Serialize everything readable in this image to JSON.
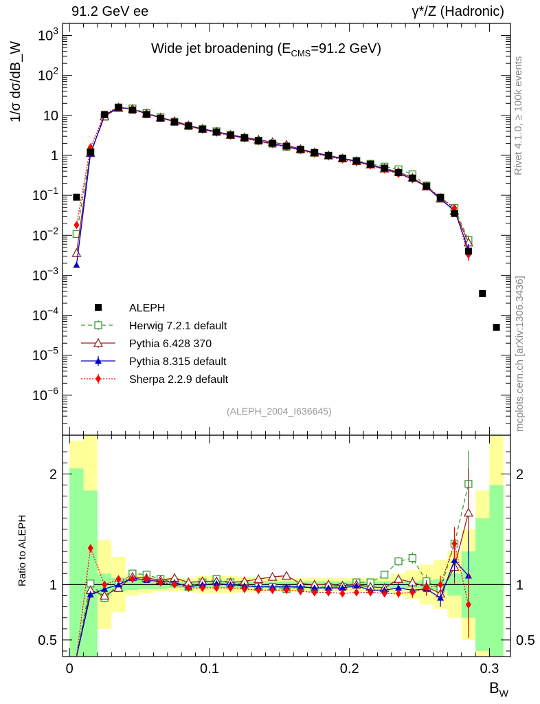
{
  "header": {
    "left": "91.2 GeV ee",
    "right": "γ*/Z (Hadronic)"
  },
  "side": {
    "rivet": "Rivet 4.1.0, ≥ 100k events",
    "mcplots": "mcplots.cern.ch [arXiv:1306.3436]"
  },
  "chart_data": {
    "type": "line",
    "title": "Wide jet broadening (E_CMS=91.2 GeV)",
    "title_main": "Wide jet broadening (E",
    "title_sub": "CMS",
    "title_end": "=91.2 GeV)",
    "analysis_tag": "(ALEPH_2004_I636645)",
    "ylabel": "1/σ dσ/dB_W",
    "ratio_ylabel": "Ratio to ALEPH",
    "xlabel": "B_W",
    "xlabel_main": "B",
    "xlabel_sub": "W",
    "xlim": [
      -0.005,
      0.315
    ],
    "ylim_log": [
      1e-07,
      2000
    ],
    "ratio_ylim": [
      0.35,
      2.35
    ],
    "x_ticks": [
      {
        "v": 0,
        "label": "0"
      },
      {
        "v": 0.1,
        "label": "0.1"
      },
      {
        "v": 0.2,
        "label": "0.2"
      },
      {
        "v": 0.3,
        "label": "0.3"
      }
    ],
    "y_ticks": [
      {
        "exp": 3,
        "label": "10",
        "sup": "3"
      },
      {
        "exp": 2,
        "label": "10",
        "sup": "2"
      },
      {
        "exp": 1,
        "label": "10",
        "sup": ""
      },
      {
        "exp": 0,
        "label": "1",
        "sup": ""
      },
      {
        "exp": -1,
        "label": "10",
        "sup": "−1"
      },
      {
        "exp": -2,
        "label": "10",
        "sup": "−2"
      },
      {
        "exp": -3,
        "label": "10",
        "sup": "−3"
      },
      {
        "exp": -4,
        "label": "10",
        "sup": "−4"
      },
      {
        "exp": -5,
        "label": "10",
        "sup": "−5"
      },
      {
        "exp": -6,
        "label": "10",
        "sup": "−6"
      }
    ],
    "ratio_ticks": [
      {
        "v": 2,
        "label": "2"
      },
      {
        "v": 1,
        "label": "1"
      },
      {
        "v": 0.5,
        "label": "0.5"
      }
    ],
    "bins": [
      0.005,
      0.015,
      0.025,
      0.035,
      0.045,
      0.055,
      0.065,
      0.075,
      0.085,
      0.095,
      0.105,
      0.115,
      0.125,
      0.135,
      0.145,
      0.155,
      0.165,
      0.175,
      0.185,
      0.195,
      0.205,
      0.215,
      0.225,
      0.235,
      0.245,
      0.255,
      0.265,
      0.275,
      0.285,
      0.295,
      0.305
    ],
    "reference": {
      "name": "ALEPH",
      "values": [
        0.09,
        1.2,
        10.5,
        15.8,
        13.5,
        10.5,
        8.5,
        6.8,
        5.5,
        4.5,
        3.8,
        3.2,
        2.75,
        2.35,
        2.0,
        1.7,
        1.42,
        1.18,
        1.0,
        0.85,
        0.72,
        0.6,
        0.48,
        0.37,
        0.27,
        0.17,
        0.09,
        0.035,
        0.004,
        0.00035,
        5e-05
      ]
    },
    "band": {
      "inner": [
        1.05,
        0.85,
        0.1,
        0.06,
        0.05,
        0.04,
        0.04,
        0.03,
        0.03,
        0.03,
        0.03,
        0.03,
        0.03,
        0.03,
        0.03,
        0.03,
        0.03,
        0.03,
        0.03,
        0.03,
        0.03,
        0.03,
        0.03,
        0.03,
        0.03,
        0.04,
        0.05,
        0.1,
        0.3,
        0.6,
        0.9
      ],
      "outer": [
        1.3,
        1.35,
        0.4,
        0.25,
        0.1,
        0.08,
        0.06,
        0.06,
        0.06,
        0.08,
        0.08,
        0.08,
        0.07,
        0.07,
        0.06,
        0.06,
        0.06,
        0.06,
        0.06,
        0.06,
        0.06,
        0.06,
        0.06,
        0.1,
        0.13,
        0.18,
        0.22,
        0.3,
        0.5,
        0.85,
        1.35
      ]
    },
    "series": [
      {
        "name": "Herwig 7.2.1 default",
        "color": "#339933",
        "marker": "open-square",
        "dash": "6,4",
        "ratio": [
          0.12,
          1.01,
          0.88,
          1.0,
          1.1,
          1.09,
          1.05,
          1.02,
          0.98,
          1.02,
          1.05,
          1.02,
          1.0,
          0.98,
          0.98,
          0.96,
          0.98,
          0.97,
          0.98,
          0.98,
          1.02,
          1.02,
          1.09,
          1.21,
          1.24,
          1.03,
          0.96,
          1.37,
          1.91
        ],
        "err": [
          0.01,
          0.03,
          0.02,
          0.01,
          0.01,
          0.01,
          0.01,
          0.01,
          0.01,
          0.01,
          0.01,
          0.01,
          0.01,
          0.01,
          0.01,
          0.01,
          0.01,
          0.02,
          0.02,
          0.02,
          0.02,
          0.02,
          0.03,
          0.04,
          0.05,
          0.06,
          0.08,
          0.15,
          0.3
        ]
      },
      {
        "name": "Pythia 6.428 370",
        "color": "#992222",
        "marker": "open-triangle",
        "dash": "",
        "ratio": [
          0.04,
          0.95,
          0.9,
          0.97,
          1.07,
          1.06,
          1.04,
          1.06,
          1.02,
          1.03,
          1.03,
          1.02,
          1.03,
          1.05,
          1.07,
          1.08,
          1.01,
          1.0,
          1.0,
          0.99,
          1.0,
          0.98,
          0.97,
          1.05,
          1.02,
          0.98,
          0.92,
          1.16,
          1.65
        ],
        "err": [
          0.01,
          0.03,
          0.02,
          0.01,
          0.01,
          0.01,
          0.01,
          0.01,
          0.01,
          0.01,
          0.01,
          0.01,
          0.01,
          0.01,
          0.01,
          0.01,
          0.01,
          0.02,
          0.02,
          0.02,
          0.02,
          0.02,
          0.03,
          0.04,
          0.05,
          0.06,
          0.08,
          0.15,
          0.4
        ]
      },
      {
        "name": "Pythia 8.315 default",
        "color": "#0000cc",
        "marker": "filled-triangle",
        "dash": "",
        "ratio": [
          0.02,
          0.91,
          0.96,
          1.0,
          1.06,
          1.04,
          1.03,
          1.02,
          0.98,
          1.0,
          1.01,
          1.0,
          0.99,
          0.98,
          0.98,
          0.98,
          0.98,
          0.97,
          0.97,
          0.97,
          0.99,
          0.95,
          0.95,
          0.97,
          0.95,
          0.96,
          0.88,
          1.22,
          1.08
        ],
        "err": [
          0.01,
          0.03,
          0.02,
          0.01,
          0.01,
          0.01,
          0.01,
          0.01,
          0.01,
          0.01,
          0.01,
          0.01,
          0.01,
          0.01,
          0.01,
          0.01,
          0.01,
          0.02,
          0.02,
          0.02,
          0.02,
          0.02,
          0.03,
          0.04,
          0.05,
          0.06,
          0.08,
          0.15,
          0.4
        ]
      },
      {
        "name": "Sherpa 2.2.9 default",
        "color": "#ff0000",
        "marker": "filled-diamond",
        "dash": "2,2",
        "ratio": [
          0.2,
          1.33,
          1.0,
          1.05,
          1.05,
          1.05,
          1.02,
          1.0,
          0.97,
          0.97,
          0.97,
          0.97,
          0.96,
          0.95,
          0.95,
          0.95,
          0.94,
          0.93,
          0.93,
          0.92,
          0.93,
          0.93,
          0.92,
          0.92,
          0.93,
          0.97,
          1.0,
          1.37,
          0.82
        ],
        "err": [
          0.01,
          0.03,
          0.02,
          0.01,
          0.01,
          0.01,
          0.01,
          0.01,
          0.01,
          0.01,
          0.01,
          0.01,
          0.01,
          0.01,
          0.01,
          0.01,
          0.01,
          0.02,
          0.02,
          0.02,
          0.02,
          0.02,
          0.03,
          0.04,
          0.05,
          0.06,
          0.08,
          0.15,
          0.3
        ]
      }
    ]
  }
}
